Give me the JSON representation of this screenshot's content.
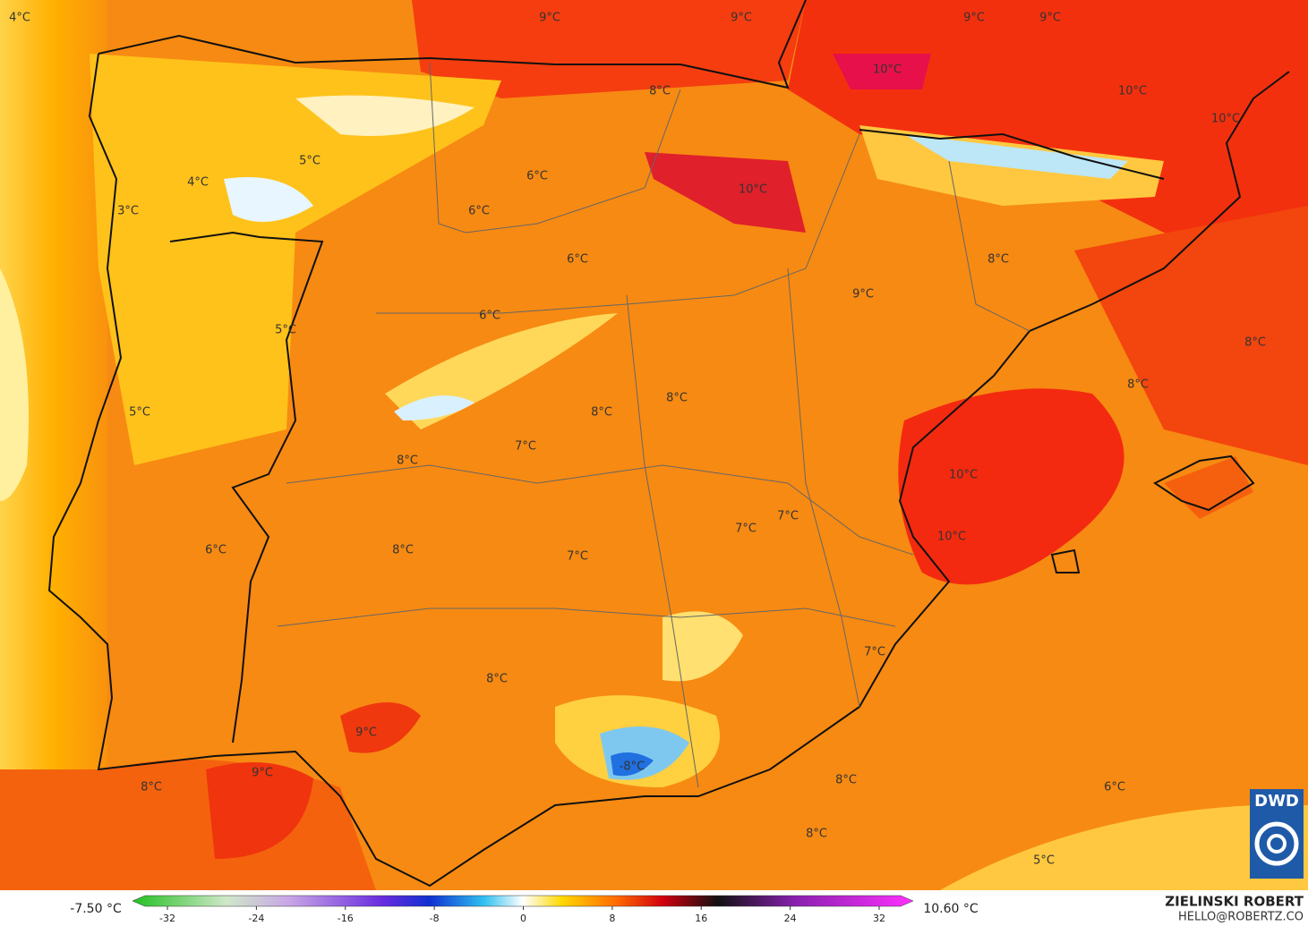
{
  "map": {
    "labels": [
      "4°C",
      "9°C",
      "9°C",
      "9°C",
      "9°C",
      "10°C",
      "8°C",
      "10°C",
      "10°C",
      "5°C",
      "4°C",
      "6°C",
      "10°C",
      "3°C",
      "6°C",
      "6°C",
      "8°C",
      "9°C",
      "6°C",
      "5°C",
      "8°C",
      "8°C",
      "8°C",
      "5°C",
      "8°C",
      "7°C",
      "8°C",
      "10°C",
      "7°C",
      "7°C",
      "10°C",
      "8°C",
      "6°C",
      "7°C",
      "7°C",
      "8°C",
      "9°C",
      "-8°C",
      "9°C",
      "8°C",
      "8°C",
      "6°C",
      "8°C",
      "5°C"
    ]
  },
  "legend": {
    "min_label": "-7.50 °C",
    "max_label": "10.60 °C",
    "ticks": [
      -32,
      -24,
      -16,
      -8,
      0,
      8,
      16,
      24,
      32
    ]
  },
  "credits": {
    "author": "ZIELINSKI ROBERT",
    "contact": "HELLO@ROBERTZ.CO",
    "logo": "DWD"
  }
}
